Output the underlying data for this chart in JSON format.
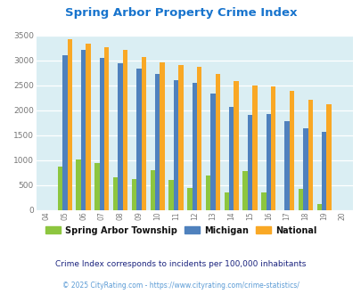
{
  "title": "Spring Arbor Property Crime Index",
  "years": [
    "04",
    "05",
    "06",
    "07",
    "08",
    "09",
    "10",
    "11",
    "12",
    "13",
    "14",
    "15",
    "16",
    "17",
    "18",
    "19",
    "20"
  ],
  "spring_arbor": [
    0,
    880,
    1020,
    940,
    650,
    620,
    800,
    610,
    450,
    700,
    350,
    780,
    360,
    0,
    430,
    120,
    0
  ],
  "michigan": [
    0,
    3100,
    3200,
    3050,
    2940,
    2830,
    2720,
    2610,
    2540,
    2340,
    2060,
    1900,
    1930,
    1790,
    1640,
    1570,
    0
  ],
  "national": [
    0,
    3420,
    3340,
    3260,
    3210,
    3060,
    2960,
    2910,
    2870,
    2730,
    2580,
    2500,
    2470,
    2380,
    2210,
    2120,
    0
  ],
  "color_spring_arbor": "#8dc63f",
  "color_michigan": "#4f81bd",
  "color_national": "#f9a825",
  "color_title": "#1874cd",
  "color_bg": "#daeef3",
  "color_subtitle": "#1a237e",
  "color_footer": "#5b9bd5",
  "ylim": [
    0,
    3500
  ],
  "yticks": [
    0,
    500,
    1000,
    1500,
    2000,
    2500,
    3000,
    3500
  ],
  "subtitle": "Crime Index corresponds to incidents per 100,000 inhabitants",
  "footer": "© 2025 CityRating.com - https://www.cityrating.com/crime-statistics/",
  "legend_labels": [
    "Spring Arbor Township",
    "Michigan",
    "National"
  ]
}
